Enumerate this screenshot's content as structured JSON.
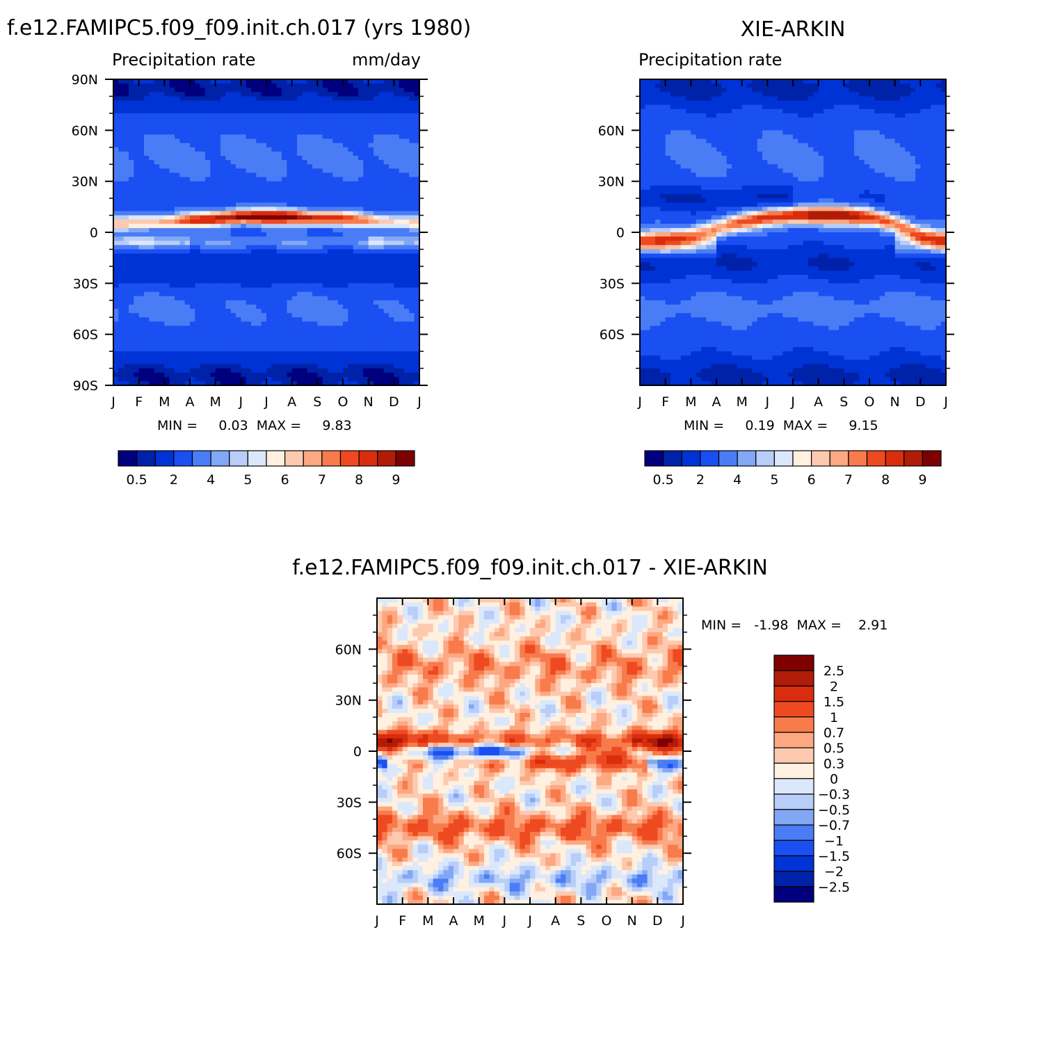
{
  "colors": {
    "abs_palette": [
      "#00007f",
      "#0022a8",
      "#0033d6",
      "#1a4ff2",
      "#4a7cf5",
      "#82a8f5",
      "#b8cdf8",
      "#dbe8fb",
      "#fff0e0",
      "#fdcab0",
      "#fca882",
      "#f87b4c",
      "#ee4a22",
      "#d92d0d",
      "#b01c08",
      "#7f0000"
    ],
    "diff_palette": [
      "#00007f",
      "#0022a8",
      "#0033d6",
      "#1a4ff2",
      "#4a7cf5",
      "#82a8f5",
      "#b8cdf8",
      "#dbe8fb",
      "#fff0e0",
      "#fdcab0",
      "#fca882",
      "#f87b4c",
      "#ee4a22",
      "#d92d0d",
      "#b01c08",
      "#7f0000"
    ]
  },
  "panels": {
    "model": {
      "title": "f.e12.FAMIPC5.f09_f09.init.ch.017 (yrs 1980)",
      "left_label": "Precipitation rate",
      "right_label": "mm/day",
      "minmax": "MIN =     0.03  MAX =     9.83"
    },
    "obs": {
      "title": "XIE-ARKIN",
      "left_label": "Precipitation rate",
      "minmax": "MIN =     0.19  MAX =     9.15"
    },
    "diff": {
      "title": "f.e12.FAMIPC5.f09_f09.init.ch.017 - XIE-ARKIN",
      "minmax": "MIN =   -1.98  MAX =    2.91"
    }
  },
  "chart_data": [
    {
      "type": "heatmap",
      "title": "f.e12.FAMIPC5.f09_f09.init.ch.017 (yrs 1980)",
      "subtitle_left": "Precipitation rate",
      "units": "mm/day",
      "x_ticks": [
        "J",
        "F",
        "M",
        "A",
        "M",
        "J",
        "J",
        "A",
        "S",
        "O",
        "N",
        "D",
        "J"
      ],
      "y_ticks": [
        "90N",
        "60N",
        "30N",
        "0",
        "30S",
        "60S",
        "90S"
      ],
      "ylim": [
        -90,
        90
      ],
      "levels_labels": [
        "0.5",
        "2",
        "4",
        "5",
        "6",
        "7",
        "8",
        "9"
      ],
      "min": 0.03,
      "max": 9.83,
      "features": {
        "itcz_lat_by_month": [
          5,
          6,
          6,
          7,
          8,
          9,
          9,
          9,
          8,
          8,
          7,
          6
        ],
        "itcz_peak_mm_day": 9.83,
        "secondary_band_lat": -6
      }
    },
    {
      "type": "heatmap",
      "title": "XIE-ARKIN",
      "subtitle_left": "Precipitation rate",
      "x_ticks": [
        "J",
        "F",
        "M",
        "A",
        "M",
        "J",
        "J",
        "A",
        "S",
        "O",
        "N",
        "D",
        "J"
      ],
      "y_ticks": [
        "60N",
        "30N",
        "0",
        "30S",
        "60S"
      ],
      "ylim": [
        -90,
        90
      ],
      "levels_labels": [
        "0.5",
        "2",
        "4",
        "5",
        "6",
        "7",
        "8",
        "9"
      ],
      "min": 0.19,
      "max": 9.15,
      "features": {
        "itcz_lat_by_month": [
          -5,
          -4,
          -2,
          2,
          6,
          9,
          10,
          10,
          10,
          9,
          5,
          -2
        ],
        "itcz_peak_mm_day": 9.15
      }
    },
    {
      "type": "heatmap",
      "title": "f.e12.FAMIPC5.f09_f09.init.ch.017 - XIE-ARKIN",
      "x_ticks": [
        "J",
        "F",
        "M",
        "A",
        "M",
        "J",
        "J",
        "A",
        "S",
        "O",
        "N",
        "D",
        "J"
      ],
      "y_ticks": [
        "60N",
        "30N",
        "0",
        "30S",
        "60S"
      ],
      "ylim": [
        -90,
        90
      ],
      "levels_labels": [
        "2.5",
        "2",
        "1.5",
        "1",
        "0.7",
        "0.5",
        "0.3",
        "0",
        "-0.3",
        "-0.5",
        "-0.7",
        "-1",
        "-1.5",
        "-2",
        "-2.5"
      ],
      "min": -1.98,
      "max": 2.91
    }
  ]
}
